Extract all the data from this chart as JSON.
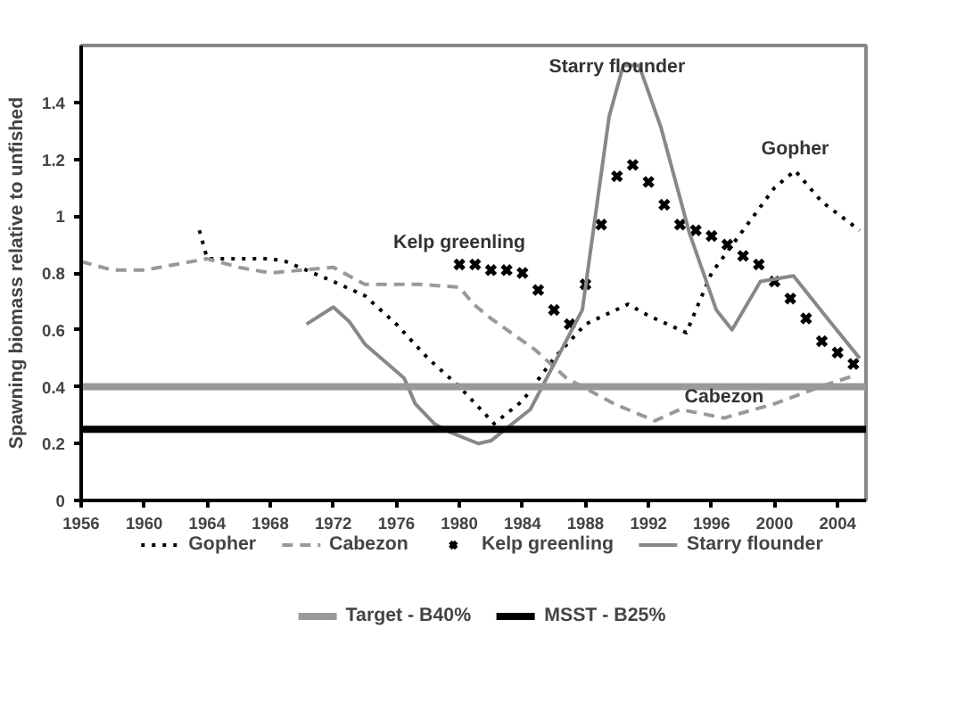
{
  "chart_data": {
    "type": "line",
    "ylabel": "Spawning biomass relative to unfished",
    "xlim": [
      1956,
      2005.8
    ],
    "xticks": [
      1956,
      1960,
      1964,
      1968,
      1972,
      1976,
      1980,
      1984,
      1988,
      1992,
      1996,
      2000,
      2004
    ],
    "ylim": [
      0,
      1.6
    ],
    "yticks": [
      0,
      0.2,
      0.4,
      0.6,
      0.8,
      1,
      1.2,
      1.4
    ],
    "grid": false,
    "legend": "bottom",
    "series": [
      {
        "name": "Gopher",
        "type": "line",
        "color": "#000000",
        "line_style": "dotted",
        "marker": "none",
        "x": [
          1963.5,
          1964,
          1966,
          1968,
          1969,
          1972,
          1974,
          1976,
          1978,
          1980,
          1982.2,
          1984,
          1986,
          1988,
          1990.7,
          1992,
          1994.4,
          1996,
          1998,
          2000,
          2001.3,
          2003,
          2005.4
        ],
        "values": [
          0.95,
          0.85,
          0.85,
          0.85,
          0.84,
          0.77,
          0.72,
          0.62,
          0.5,
          0.4,
          0.27,
          0.35,
          0.5,
          0.62,
          0.69,
          0.65,
          0.59,
          0.8,
          0.95,
          1.1,
          1.16,
          1.05,
          0.95
        ]
      },
      {
        "name": "Cabezon",
        "type": "line",
        "color": "#999999",
        "line_style": "dashed",
        "marker": "none",
        "x": [
          1956,
          1958,
          1960,
          1962,
          1964,
          1966,
          1968,
          1970,
          1972,
          1974,
          1977.5,
          1980,
          1980.9,
          1982,
          1984.8,
          1986.8,
          1989.8,
          1992.4,
          1994,
          1996.8,
          2000,
          2002.9,
          2005.1
        ],
        "values": [
          0.84,
          0.81,
          0.81,
          0.83,
          0.85,
          0.82,
          0.8,
          0.81,
          0.82,
          0.76,
          0.76,
          0.75,
          0.69,
          0.64,
          0.53,
          0.43,
          0.34,
          0.28,
          0.32,
          0.29,
          0.34,
          0.4,
          0.44
        ]
      },
      {
        "name": "Kelp greenling",
        "type": "scatter",
        "color": "#000000",
        "marker": "cross",
        "x": [
          1980,
          1981,
          1982,
          1983,
          1984,
          1985,
          1986,
          1987,
          1988,
          1989,
          1990,
          1991,
          1992,
          1993,
          1994,
          1995,
          1996,
          1997,
          1998,
          1999,
          2000,
          2001,
          2002,
          2003,
          2004,
          2005
        ],
        "values": [
          0.83,
          0.83,
          0.81,
          0.81,
          0.8,
          0.74,
          0.67,
          0.62,
          0.76,
          0.97,
          1.14,
          1.18,
          1.12,
          1.04,
          0.97,
          0.95,
          0.93,
          0.9,
          0.86,
          0.83,
          0.77,
          0.71,
          0.64,
          0.56,
          0.52,
          0.48
        ]
      },
      {
        "name": "Starry flounder",
        "type": "line",
        "color": "#888888",
        "line_style": "solid",
        "marker": "none",
        "x": [
          1970.3,
          1972,
          1973,
          1974,
          1976.5,
          1977.2,
          1978.4,
          1979.4,
          1981.2,
          1982,
          1984.5,
          1987.8,
          1989.5,
          1990.4,
          1991.4,
          1992.8,
          1994.6,
          1996.3,
          1997.3,
          1999.1,
          2001.2,
          2003.5,
          2005.4
        ],
        "values": [
          0.62,
          0.68,
          0.63,
          0.55,
          0.43,
          0.34,
          0.27,
          0.24,
          0.2,
          0.21,
          0.32,
          0.67,
          1.35,
          1.53,
          1.53,
          1.31,
          0.94,
          0.67,
          0.6,
          0.77,
          0.79,
          0.63,
          0.5
        ]
      }
    ],
    "ref_lines": [
      {
        "axis": "y",
        "value": 0.4,
        "label": "Target - B40%",
        "color": "#999999",
        "line_style": "solid"
      },
      {
        "axis": "y",
        "value": 0.25,
        "label": "MSST - B25%",
        "color": "#000000",
        "line_style": "solid"
      }
    ],
    "annotations": [
      {
        "text": "Starry flounder",
        "x": 1990,
        "y": 1.45
      },
      {
        "text": "Gopher",
        "x": 2001.3,
        "y": 1.16
      },
      {
        "text": "Kelp greenling",
        "x": 1980,
        "y": 0.83
      },
      {
        "text": "Cabezon",
        "x": 1996.8,
        "y": 0.29
      }
    ]
  }
}
